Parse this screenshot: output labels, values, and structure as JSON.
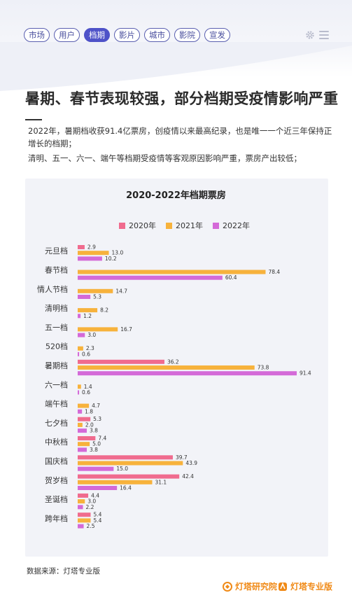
{
  "nav": {
    "tabs": [
      {
        "label": "市场",
        "active": false
      },
      {
        "label": "用户",
        "active": false
      },
      {
        "label": "档期",
        "active": true
      },
      {
        "label": "影片",
        "active": false
      },
      {
        "label": "城市",
        "active": false
      },
      {
        "label": "影院",
        "active": false
      },
      {
        "label": "宣发",
        "active": false
      }
    ],
    "settings_icon": "gear-icon",
    "menu_icon": "hamburger-menu-icon"
  },
  "page": {
    "title": "暑期、春节表现较强，部分档期受疫情影响严重",
    "paragraph1": "2022年，暑期档收获91.4亿票房，创疫情以来最高纪录，也是唯一一个近三年保持正增长的档期；",
    "paragraph2": "清明、五一、六一、端午等档期受疫情等客观原因影响严重，票房产出较低；"
  },
  "colors": {
    "accent": "#4e52c8",
    "series_2020": "#f06b8e",
    "series_2021": "#f7b23c",
    "series_2022": "#d46ad8",
    "card_bg": "#f2f3f8",
    "brand": "#f08a17"
  },
  "chart_data": {
    "type": "bar",
    "orientation": "horizontal",
    "title": "2020-2022年档期票房",
    "legend_position": "top-center",
    "categories": [
      "元旦档",
      "春节档",
      "情人节档",
      "清明档",
      "五一档",
      "520档",
      "暑期档",
      "六一档",
      "端午档",
      "七夕档",
      "中秋档",
      "国庆档",
      "贺岁档",
      "圣诞档",
      "跨年档"
    ],
    "series": [
      {
        "name": "2020年",
        "values": [
          2.9,
          null,
          null,
          null,
          null,
          null,
          36.2,
          null,
          null,
          5.3,
          7.4,
          39.7,
          42.4,
          4.4,
          5.4
        ]
      },
      {
        "name": "2021年",
        "values": [
          13.0,
          78.4,
          14.7,
          8.2,
          16.7,
          2.3,
          73.8,
          1.4,
          4.7,
          2.0,
          5.0,
          43.9,
          31.1,
          3.0,
          5.4
        ]
      },
      {
        "name": "2022年",
        "values": [
          10.2,
          60.4,
          5.3,
          1.2,
          3.0,
          0.6,
          91.4,
          0.6,
          1.8,
          3.8,
          3.8,
          15.0,
          16.4,
          2.2,
          2.5
        ]
      }
    ],
    "value_labels": [
      [
        "2.9",
        "",
        "",
        "",
        "",
        "",
        "36.2",
        "",
        "",
        "5.3",
        "7.4",
        "39.7",
        "42.4",
        "4.4",
        "5.4"
      ],
      [
        "13.0",
        "78.4",
        "14.7",
        "8.2",
        "16.7",
        "2.3",
        "73.8",
        "1.4",
        "4.7",
        "2.0",
        "5.0",
        "43.9",
        "31.1",
        "3.0",
        "5.4"
      ],
      [
        "10.2",
        "60.4",
        "5.3",
        "1.2",
        "3.0",
        "0.6",
        "91.4",
        "0.6",
        "1.8",
        "3.8",
        "3.8",
        "15.0",
        "16.4",
        "2.2",
        "2.5"
      ]
    ],
    "xlim": [
      0,
      91.4
    ],
    "grid": false
  },
  "footer": {
    "source": "数据来源：灯塔专业版",
    "brand1": "灯塔研究院",
    "brand2": "灯塔专业版"
  }
}
